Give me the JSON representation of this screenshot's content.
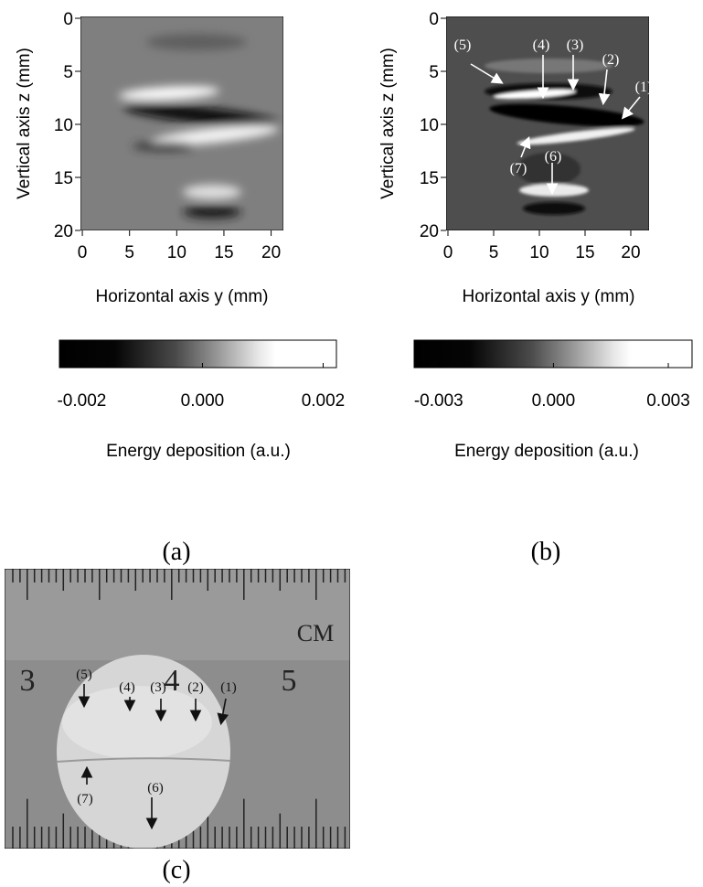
{
  "panels": [
    {
      "caption": "(a)",
      "x_label": "Horizontal axis y (mm)",
      "y_label": "Vertical axis z (mm)",
      "xlim": [
        -0.2,
        21.3
      ],
      "ylim": [
        0,
        20
      ],
      "xticks": [
        0,
        5,
        10,
        15,
        20
      ],
      "yticks": [
        0,
        5,
        10,
        15,
        20
      ],
      "colorbar": {
        "label": "Energy deposition (a.u.)",
        "lim": [
          -0.00237,
          0.00222
        ],
        "ticks": [
          -0.002,
          {
            "value": 0,
            "label": "0.000"
          },
          0.002
        ]
      }
    },
    {
      "caption": "(b)",
      "x_label": "Horizontal axis y (mm)",
      "y_label": "Vertical axis z (mm)",
      "xlim": [
        -0.2,
        22
      ],
      "ylim": [
        0,
        20
      ],
      "xticks": [
        0,
        5,
        10,
        15,
        20
      ],
      "yticks": [
        0,
        5,
        10,
        15,
        20
      ],
      "colorbar": {
        "label": "Energy deposition (a.u.)",
        "lim": [
          -0.00364,
          0.00362
        ],
        "ticks": [
          -0.003,
          {
            "value": 0,
            "label": "0.000"
          },
          0.003
        ]
      },
      "annotations": [
        "(1)",
        "(2)",
        "(3)",
        "(4)",
        "(5)",
        "(6)",
        "(7)"
      ]
    }
  ],
  "photo": {
    "caption": "(c)",
    "scale_label": "CM",
    "ruler_numbers": [
      3,
      4,
      5
    ],
    "annotations": [
      "(1)",
      "(2)",
      "(3)",
      "(4)",
      "(5)",
      "(6)",
      "(7)"
    ]
  }
}
